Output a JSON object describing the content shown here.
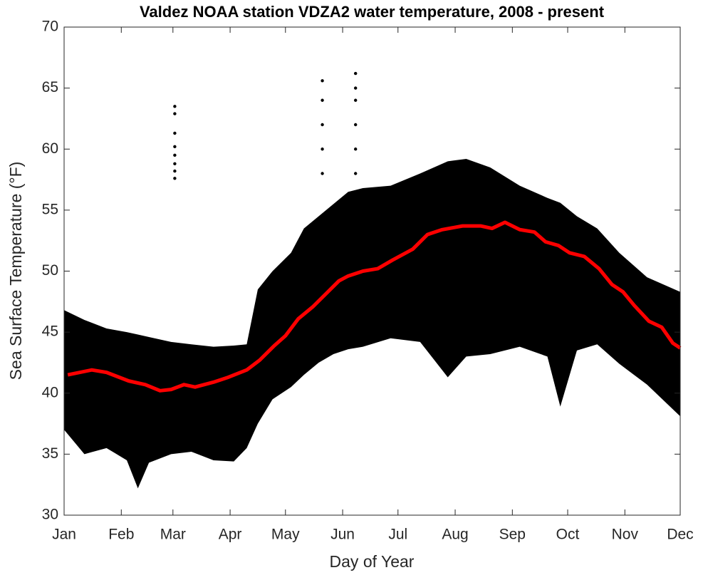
{
  "chart_data": {
    "type": "scatter",
    "title": "Valdez NOAA station VDZA2 water temperature, 2008 - present",
    "xlabel": "Day of Year",
    "ylabel": "Sea Surface Temperature (°F)",
    "xlim": [
      1,
      335
    ],
    "xticks": [
      {
        "value": 1,
        "label": "Jan"
      },
      {
        "value": 32,
        "label": "Feb"
      },
      {
        "value": 60,
        "label": "Mar"
      },
      {
        "value": 91,
        "label": "Apr"
      },
      {
        "value": 121,
        "label": "May"
      },
      {
        "value": 152,
        "label": "Jun"
      },
      {
        "value": 182,
        "label": "Jul"
      },
      {
        "value": 213,
        "label": "Aug"
      },
      {
        "value": 244,
        "label": "Sep"
      },
      {
        "value": 274,
        "label": "Oct"
      },
      {
        "value": 305,
        "label": "Nov"
      },
      {
        "value": 335,
        "label": "Dec"
      }
    ],
    "ylim": [
      30,
      70
    ],
    "yticks": [
      30,
      35,
      40,
      45,
      50,
      55,
      60,
      65,
      70
    ],
    "series": [
      {
        "type": "range",
        "color": "#000000",
        "x": [
          1,
          12,
          24,
          35,
          41,
          47,
          59,
          70,
          82,
          93,
          100,
          106,
          114,
          124,
          131,
          139,
          147,
          155,
          163,
          178,
          194,
          209,
          219,
          232,
          248,
          263,
          270,
          279,
          290,
          302,
          317,
          335
        ],
        "high": [
          46.8,
          46,
          45.3,
          45,
          44.8,
          44.6,
          44.2,
          44,
          43.8,
          43.9,
          44,
          48.5,
          50,
          51.5,
          53.5,
          54.5,
          55.5,
          56.5,
          56.8,
          57,
          58,
          59,
          59.2,
          58.5,
          57,
          56,
          55.6,
          54.5,
          53.5,
          51.5,
          49.5,
          48.3
        ],
        "low": [
          37,
          35,
          35.5,
          34.5,
          32.2,
          34.3,
          35,
          35.2,
          34.5,
          34.4,
          35.5,
          37.5,
          39.5,
          40.5,
          41.5,
          42.5,
          43.2,
          43.6,
          43.8,
          44.5,
          44.2,
          41.3,
          43,
          43.2,
          43.8,
          43,
          38.9,
          43.5,
          44,
          42.4,
          40.7,
          38.1
        ]
      },
      {
        "type": "scatter",
        "color": "#000000",
        "x": [
          61,
          61,
          61,
          61,
          61,
          61,
          61,
          61,
          141,
          141,
          141,
          141,
          141,
          159,
          159,
          159,
          159,
          159,
          159
        ],
        "values": [
          57.6,
          58.2,
          58.8,
          59.5,
          60.2,
          61.3,
          62.9,
          63.5,
          58,
          60,
          62,
          64,
          65.6,
          58,
          60,
          62,
          64,
          65,
          66.2
        ]
      },
      {
        "type": "line",
        "color": "#ff0000",
        "x": [
          3,
          16,
          24,
          36,
          45,
          53,
          59,
          66,
          72,
          82,
          90,
          100,
          107,
          115,
          121,
          128,
          136,
          144,
          150,
          155,
          163,
          171,
          179,
          190,
          198,
          206,
          217,
          227,
          233,
          240,
          248,
          256,
          262,
          269,
          275,
          283,
          291,
          298,
          304,
          310,
          318,
          325,
          331,
          335
        ],
        "values": [
          41.5,
          41.9,
          41.7,
          41,
          40.7,
          40.2,
          40.3,
          40.7,
          40.5,
          40.9,
          41.3,
          41.9,
          42.7,
          43.9,
          44.7,
          46.1,
          47.1,
          48.3,
          49.2,
          49.6,
          50,
          50.2,
          50.9,
          51.8,
          53,
          53.4,
          53.7,
          53.7,
          53.5,
          54,
          53.4,
          53.2,
          52.4,
          52.1,
          51.5,
          51.2,
          50.2,
          48.9,
          48.3,
          47.2,
          45.9,
          45.4,
          44.1,
          43.7
        ]
      }
    ]
  }
}
